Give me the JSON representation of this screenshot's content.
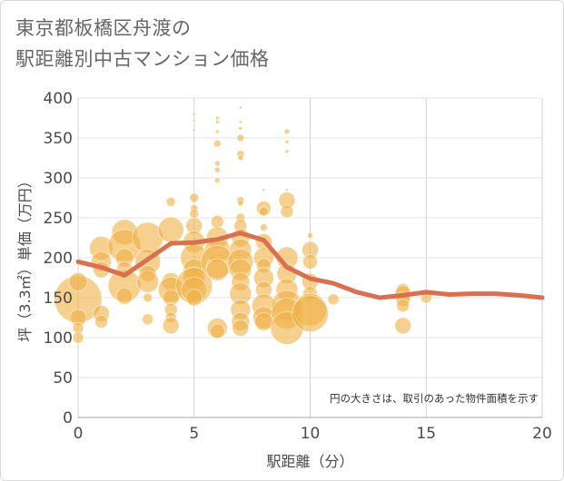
{
  "title_line1": "東京都板橋区舟渡の",
  "title_line2": "駅距離別中古マンション価格",
  "chart_data": {
    "type": "scatter",
    "xlabel": "駅距離（分）",
    "ylabel": "坪（3.3㎡）単価（万円）",
    "xlim": [
      0,
      20
    ],
    "ylim": [
      0,
      400
    ],
    "xticks": [
      "0",
      "5",
      "10",
      "15",
      "20"
    ],
    "yticks": [
      "0",
      "50",
      "100",
      "150",
      "200",
      "250",
      "300",
      "350",
      "400"
    ],
    "grid": true,
    "note": "円の大きさは、取引のあった物件面積を示す",
    "bubble_color": "#f0b145",
    "line_color": "#d9704f",
    "bubbles": [
      {
        "x": 0,
        "y": 148,
        "s": 26
      },
      {
        "x": 0,
        "y": 170,
        "s": 10
      },
      {
        "x": 0,
        "y": 125,
        "s": 9
      },
      {
        "x": 0,
        "y": 112,
        "s": 6
      },
      {
        "x": 0,
        "y": 100,
        "s": 6
      },
      {
        "x": 1,
        "y": 212,
        "s": 13
      },
      {
        "x": 1,
        "y": 195,
        "s": 11
      },
      {
        "x": 1,
        "y": 185,
        "s": 9
      },
      {
        "x": 1,
        "y": 130,
        "s": 9
      },
      {
        "x": 1,
        "y": 120,
        "s": 7
      },
      {
        "x": 2,
        "y": 232,
        "s": 14
      },
      {
        "x": 2,
        "y": 215,
        "s": 18
      },
      {
        "x": 2,
        "y": 200,
        "s": 10
      },
      {
        "x": 2,
        "y": 185,
        "s": 9
      },
      {
        "x": 2,
        "y": 165,
        "s": 18
      },
      {
        "x": 2,
        "y": 152,
        "s": 9
      },
      {
        "x": 3,
        "y": 225,
        "s": 17
      },
      {
        "x": 3,
        "y": 195,
        "s": 14
      },
      {
        "x": 3,
        "y": 180,
        "s": 9
      },
      {
        "x": 3,
        "y": 170,
        "s": 12
      },
      {
        "x": 3,
        "y": 150,
        "s": 5
      },
      {
        "x": 3,
        "y": 123,
        "s": 6
      },
      {
        "x": 4,
        "y": 270,
        "s": 5
      },
      {
        "x": 4,
        "y": 235,
        "s": 14
      },
      {
        "x": 4,
        "y": 170,
        "s": 10
      },
      {
        "x": 4,
        "y": 160,
        "s": 14
      },
      {
        "x": 4,
        "y": 150,
        "s": 9
      },
      {
        "x": 4,
        "y": 135,
        "s": 7
      },
      {
        "x": 4,
        "y": 125,
        "s": 6
      },
      {
        "x": 4,
        "y": 115,
        "s": 9
      },
      {
        "x": 5,
        "y": 380,
        "s": 1.5
      },
      {
        "x": 5,
        "y": 372,
        "s": 1.5
      },
      {
        "x": 5,
        "y": 360,
        "s": 1.5
      },
      {
        "x": 5,
        "y": 275,
        "s": 5
      },
      {
        "x": 5,
        "y": 262,
        "s": 4
      },
      {
        "x": 5,
        "y": 255,
        "s": 5
      },
      {
        "x": 5,
        "y": 240,
        "s": 9
      },
      {
        "x": 5,
        "y": 220,
        "s": 12
      },
      {
        "x": 5,
        "y": 200,
        "s": 15
      },
      {
        "x": 5,
        "y": 185,
        "s": 12
      },
      {
        "x": 5,
        "y": 175,
        "s": 12
      },
      {
        "x": 5,
        "y": 165,
        "s": 20
      },
      {
        "x": 5,
        "y": 160,
        "s": 14
      },
      {
        "x": 5,
        "y": 150,
        "s": 9
      },
      {
        "x": 6,
        "y": 375,
        "s": 2
      },
      {
        "x": 6,
        "y": 370,
        "s": 2
      },
      {
        "x": 6,
        "y": 358,
        "s": 2
      },
      {
        "x": 6,
        "y": 343,
        "s": 4
      },
      {
        "x": 6,
        "y": 318,
        "s": 3
      },
      {
        "x": 6,
        "y": 310,
        "s": 3
      },
      {
        "x": 6,
        "y": 297,
        "s": 3
      },
      {
        "x": 6,
        "y": 245,
        "s": 7
      },
      {
        "x": 6,
        "y": 225,
        "s": 12
      },
      {
        "x": 6,
        "y": 210,
        "s": 14
      },
      {
        "x": 6,
        "y": 195,
        "s": 18
      },
      {
        "x": 6,
        "y": 185,
        "s": 12
      },
      {
        "x": 6,
        "y": 112,
        "s": 11
      },
      {
        "x": 6,
        "y": 108,
        "s": 8
      },
      {
        "x": 7,
        "y": 388,
        "s": 1.5
      },
      {
        "x": 7,
        "y": 370,
        "s": 1.5
      },
      {
        "x": 7,
        "y": 362,
        "s": 2
      },
      {
        "x": 7,
        "y": 350,
        "s": 4
      },
      {
        "x": 7,
        "y": 330,
        "s": 4
      },
      {
        "x": 7,
        "y": 325,
        "s": 3
      },
      {
        "x": 7,
        "y": 272,
        "s": 4
      },
      {
        "x": 7,
        "y": 268,
        "s": 3
      },
      {
        "x": 7,
        "y": 250,
        "s": 5
      },
      {
        "x": 7,
        "y": 240,
        "s": 7
      },
      {
        "x": 7,
        "y": 225,
        "s": 10
      },
      {
        "x": 7,
        "y": 210,
        "s": 12
      },
      {
        "x": 7,
        "y": 195,
        "s": 14
      },
      {
        "x": 7,
        "y": 185,
        "s": 12
      },
      {
        "x": 7,
        "y": 170,
        "s": 10
      },
      {
        "x": 7,
        "y": 155,
        "s": 12
      },
      {
        "x": 7,
        "y": 135,
        "s": 11
      },
      {
        "x": 7,
        "y": 120,
        "s": 10
      },
      {
        "x": 7,
        "y": 112,
        "s": 9
      },
      {
        "x": 8,
        "y": 285,
        "s": 1.5
      },
      {
        "x": 8,
        "y": 262,
        "s": 8
      },
      {
        "x": 8,
        "y": 258,
        "s": 5
      },
      {
        "x": 8,
        "y": 238,
        "s": 4
      },
      {
        "x": 8,
        "y": 220,
        "s": 9
      },
      {
        "x": 8,
        "y": 200,
        "s": 11
      },
      {
        "x": 8,
        "y": 190,
        "s": 8
      },
      {
        "x": 8,
        "y": 175,
        "s": 11
      },
      {
        "x": 8,
        "y": 160,
        "s": 9
      },
      {
        "x": 8,
        "y": 140,
        "s": 13
      },
      {
        "x": 8,
        "y": 125,
        "s": 12
      },
      {
        "x": 8,
        "y": 120,
        "s": 10
      },
      {
        "x": 9,
        "y": 358,
        "s": 3
      },
      {
        "x": 9,
        "y": 345,
        "s": 2
      },
      {
        "x": 9,
        "y": 333,
        "s": 2
      },
      {
        "x": 9,
        "y": 285,
        "s": 1.5
      },
      {
        "x": 9,
        "y": 272,
        "s": 9
      },
      {
        "x": 9,
        "y": 258,
        "s": 7
      },
      {
        "x": 9,
        "y": 200,
        "s": 12
      },
      {
        "x": 9,
        "y": 180,
        "s": 11
      },
      {
        "x": 9,
        "y": 160,
        "s": 12
      },
      {
        "x": 9,
        "y": 140,
        "s": 17
      },
      {
        "x": 9,
        "y": 130,
        "s": 17
      },
      {
        "x": 9,
        "y": 112,
        "s": 18
      },
      {
        "x": 10,
        "y": 228,
        "s": 3
      },
      {
        "x": 10,
        "y": 210,
        "s": 9
      },
      {
        "x": 10,
        "y": 195,
        "s": 8
      },
      {
        "x": 10,
        "y": 170,
        "s": 9
      },
      {
        "x": 10,
        "y": 155,
        "s": 8
      },
      {
        "x": 10,
        "y": 135,
        "s": 18
      },
      {
        "x": 10,
        "y": 130,
        "s": 20
      },
      {
        "x": 11,
        "y": 148,
        "s": 6
      },
      {
        "x": 14,
        "y": 160,
        "s": 7
      },
      {
        "x": 14,
        "y": 155,
        "s": 9
      },
      {
        "x": 14,
        "y": 148,
        "s": 8
      },
      {
        "x": 14,
        "y": 140,
        "s": 7
      },
      {
        "x": 14,
        "y": 115,
        "s": 9
      },
      {
        "x": 15,
        "y": 150,
        "s": 6
      }
    ],
    "series": [
      {
        "x": [
          0,
          1,
          2,
          3,
          4,
          5,
          6,
          7,
          8,
          9,
          10,
          11,
          12,
          13,
          14,
          15,
          16,
          17,
          18,
          19,
          20
        ],
        "values": [
          195,
          188,
          178,
          198,
          218,
          219,
          223,
          231,
          222,
          188,
          174,
          168,
          157,
          150,
          153,
          157,
          154,
          155,
          155,
          153,
          150
        ]
      }
    ]
  }
}
